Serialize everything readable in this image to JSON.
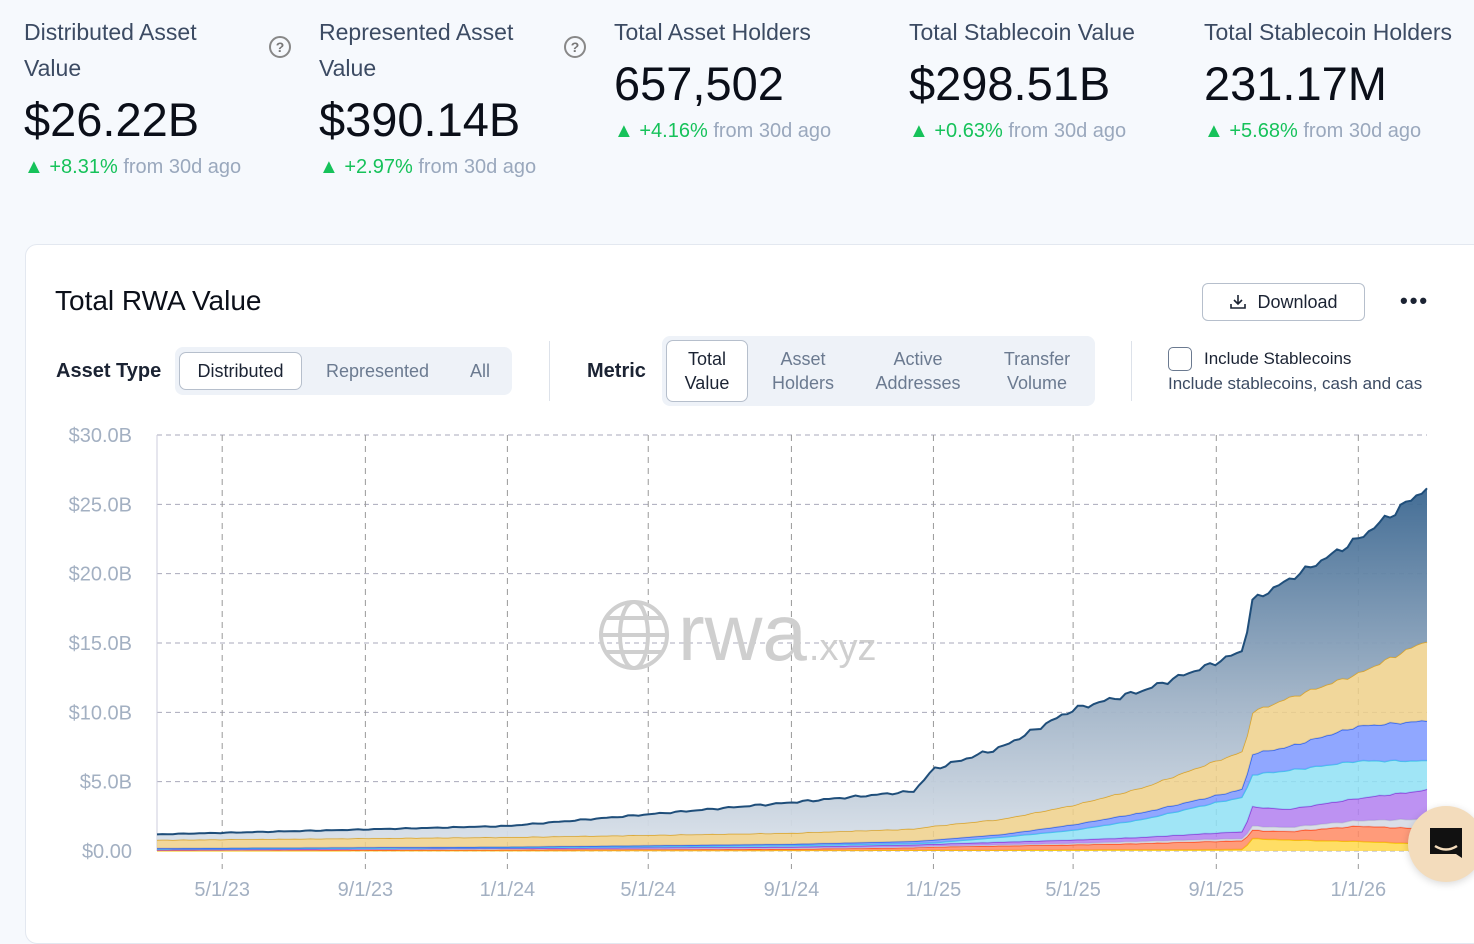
{
  "stats": [
    {
      "label": "Distributed Asset Value",
      "value": "$26.22B",
      "change": "+8.31%",
      "suffix": "from 30d ago",
      "help": true
    },
    {
      "label": "Represented Asset Value",
      "value": "$390.14B",
      "change": "+2.97%",
      "suffix": "from 30d ago",
      "help": true
    },
    {
      "label": "Total Asset Holders",
      "value": "657,502",
      "change": "+4.16%",
      "suffix": "from 30d ago"
    },
    {
      "label": "Total Stablecoin Value",
      "value": "$298.51B",
      "change": "+0.63%",
      "suffix": "from 30d ago"
    },
    {
      "label": "Total Stablecoin Holders",
      "value": "231.17M",
      "change": "+5.68%",
      "suffix": "from 30d ago"
    }
  ],
  "card": {
    "title": "Total RWA Value",
    "download": "Download",
    "asset_type_label": "Asset Type",
    "asset_types": [
      "Distributed",
      "Represented",
      "All"
    ],
    "asset_type_selected": "Distributed",
    "metric_label": "Metric",
    "metrics": [
      [
        "Total",
        "Value"
      ],
      [
        "Asset",
        "Holders"
      ],
      [
        "Active",
        "Addresses"
      ],
      [
        "Transfer",
        "Volume"
      ]
    ],
    "metric_selected": "Total Value",
    "stablecoin_checkbox": "Include Stablecoins",
    "stablecoin_checked": false,
    "stablecoin_desc": "Include stablecoins, cash and cas",
    "watermark": "rwa.xyz"
  },
  "colors": {
    "up": "#16c25a",
    "navy": "#1f4e7a",
    "gold": "#e9c46a",
    "blue": "#5a7dff",
    "cyan": "#7fdcf2",
    "purple": "#a66bea",
    "gray": "#c8cfdc",
    "red": "#ff6a3d",
    "yellow": "#ffd84a"
  },
  "chart_data": {
    "type": "area",
    "stacked": true,
    "grid": true,
    "ylim": [
      0,
      30
    ],
    "yticks": [
      "$0.00",
      "$5.0B",
      "$10.0B",
      "$15.0B",
      "$20.0B",
      "$25.0B",
      "$30.0B"
    ],
    "ytick_values": [
      0,
      5,
      10,
      15,
      20,
      25,
      30
    ],
    "xticks": [
      "5/1/23",
      "9/1/23",
      "1/1/24",
      "5/1/24",
      "9/1/24",
      "1/1/25",
      "5/1/25",
      "9/1/25",
      "1/1/26"
    ],
    "xtick_dates": [
      "2023-05-01",
      "2023-09-01",
      "2024-01-01",
      "2024-05-01",
      "2024-09-01",
      "2025-01-01",
      "2025-05-01",
      "2025-09-01",
      "2026-01-01"
    ],
    "xrange": [
      "2023-03-06",
      "2026-03-01"
    ],
    "unit": "USD billions",
    "x": [
      "2023-03-06",
      "2024-01-01",
      "2024-09-01",
      "2024-12-15",
      "2025-01-01",
      "2025-03-01",
      "2025-05-01",
      "2025-07-01",
      "2025-09-01",
      "2025-09-25",
      "2025-10-01",
      "2025-11-01",
      "2026-01-01",
      "2026-03-01"
    ],
    "series": [
      {
        "color": "#ffd84a",
        "stroke": "#f5c400",
        "values": [
          0.02,
          0.03,
          0.04,
          0.05,
          0.05,
          0.06,
          0.08,
          0.09,
          0.1,
          0.12,
          0.9,
          0.8,
          0.7,
          0.5
        ]
      },
      {
        "color": "#ff8a63",
        "stroke": "#ff4b1f",
        "values": [
          0.03,
          0.07,
          0.11,
          0.2,
          0.25,
          0.32,
          0.37,
          0.46,
          0.6,
          0.63,
          0.6,
          0.6,
          1.1,
          1.1
        ]
      },
      {
        "color": "#d3d8e3",
        "stroke": "#c0c7d4",
        "values": [
          0.03,
          0.05,
          0.05,
          0.05,
          0.05,
          0.07,
          0.1,
          0.15,
          0.15,
          0.15,
          0.3,
          0.3,
          0.4,
          0.7
        ]
      },
      {
        "color": "#b27ff0",
        "stroke": "#8a3fd9",
        "values": [
          0.02,
          0.05,
          0.1,
          0.15,
          0.15,
          0.2,
          0.25,
          0.3,
          0.45,
          0.5,
          1.4,
          1.3,
          1.6,
          2.1
        ]
      },
      {
        "color": "#8fe1f5",
        "stroke": "#3fc6ea",
        "values": [
          0.05,
          0.05,
          0.1,
          0.1,
          0.1,
          0.35,
          0.7,
          1.3,
          2.2,
          2.5,
          2.3,
          2.8,
          2.7,
          2.1
        ]
      },
      {
        "color": "#7d98ff",
        "stroke": "#2f63f0",
        "values": [
          0.05,
          0.05,
          0.1,
          0.15,
          0.2,
          0.2,
          0.4,
          0.5,
          0.5,
          0.6,
          1.5,
          1.7,
          2.5,
          2.9
        ]
      },
      {
        "color": "#efd08a",
        "stroke": "#d9a32a",
        "values": [
          0.6,
          0.7,
          0.8,
          0.9,
          1.0,
          1.1,
          1.4,
          1.8,
          2.5,
          2.7,
          3.0,
          3.5,
          3.8,
          5.8
        ]
      },
      {
        "color": "url(#navyGrad)",
        "stroke": "#1f4e7a",
        "values": [
          0.4,
          0.8,
          2.2,
          2.7,
          4.1,
          5.2,
          6.9,
          7.0,
          7.1,
          7.3,
          8.0,
          8.5,
          9.7,
          11.0
        ]
      }
    ]
  }
}
